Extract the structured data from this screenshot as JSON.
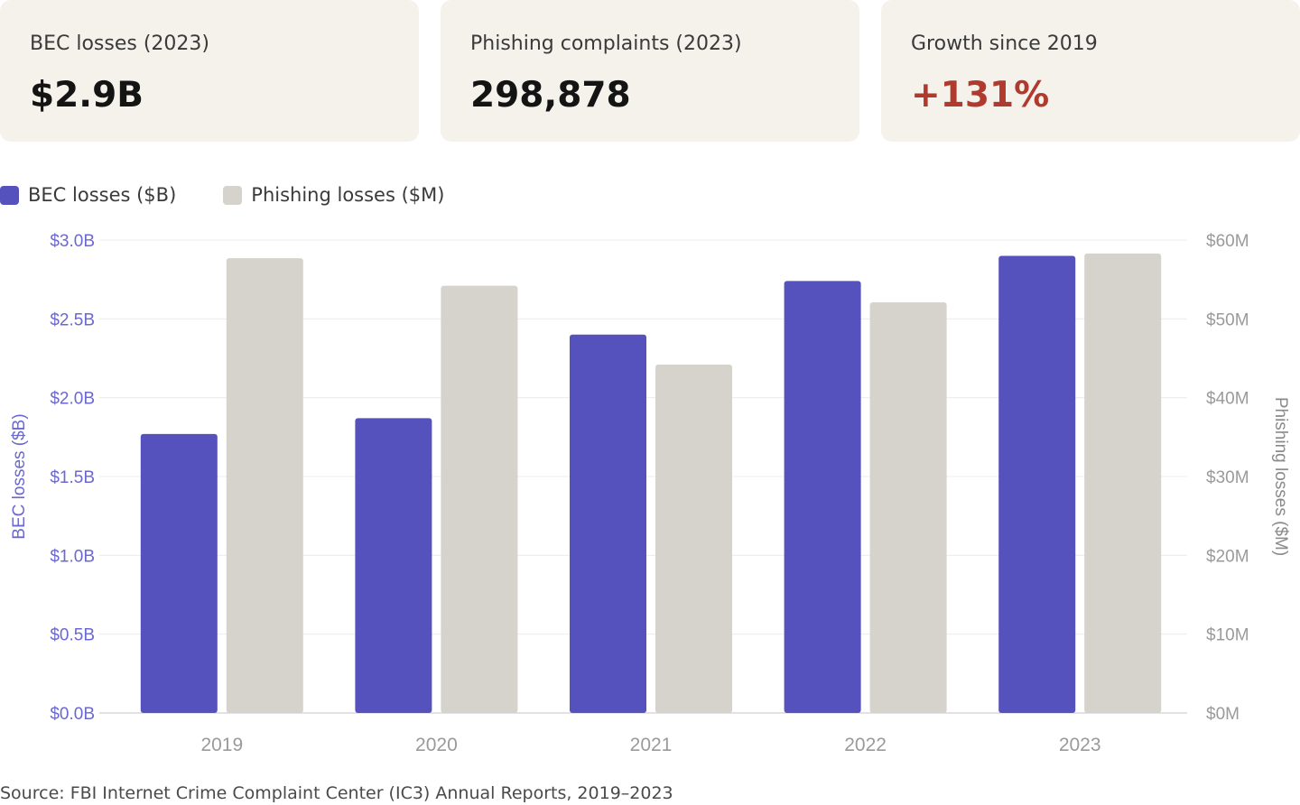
{
  "kpis": [
    {
      "label": "BEC losses (2023)",
      "value": "$2.9B"
    },
    {
      "label": "Phishing complaints (2023)",
      "value": "298,878"
    },
    {
      "label": "Growth since 2019",
      "value": "+131%",
      "value_color": "#b03a2e"
    }
  ],
  "legend": [
    {
      "label": "BEC losses ($B)",
      "color": "#5551bd"
    },
    {
      "label": "Phishing losses ($M)",
      "color": "#d6d2cc"
    }
  ],
  "chart_data": {
    "type": "bar",
    "categories": [
      "2019",
      "2020",
      "2021",
      "2022",
      "2023"
    ],
    "series": [
      {
        "name": "BEC losses ($B)",
        "axis": "left",
        "color": "#5551bd",
        "values": [
          1.77,
          1.87,
          2.4,
          2.74,
          2.9
        ]
      },
      {
        "name": "Phishing losses ($M)",
        "axis": "right",
        "color": "#d6d2cc",
        "values": [
          57.7,
          54.2,
          44.2,
          52.1,
          58.3
        ]
      }
    ],
    "ylabel_left": "BEC losses ($B)",
    "ylabel_right": "Phishing losses ($M)",
    "ylim_left": [
      0,
      3.0
    ],
    "ylim_right": [
      0,
      60
    ],
    "yticks_left": [
      "$0.0B",
      "$0.5B",
      "$1.0B",
      "$1.5B",
      "$2.0B",
      "$2.5B",
      "$3.0B"
    ],
    "yticks_right": [
      "$0M",
      "$10M",
      "$20M",
      "$30M",
      "$40M",
      "$50M",
      "$60M"
    ],
    "grid": true,
    "legend_position": "top-left",
    "axis_label_left_color": "#6b68cf",
    "axis_label_right_color": "#8a8a8a",
    "tick_color": "#9a9a9a"
  },
  "source": "Source: FBI Internet Crime Complaint Center (IC3) Annual Reports, 2019–2023"
}
